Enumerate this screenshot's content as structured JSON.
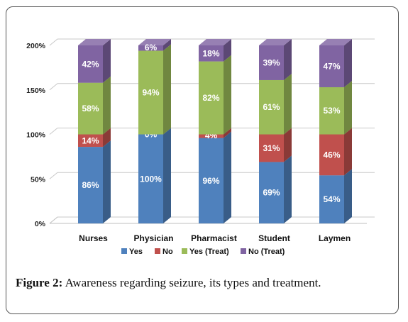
{
  "chart_data": {
    "type": "bar",
    "stacked": true,
    "style": "3d",
    "categories": [
      "Nurses",
      "Physician",
      "Pharmacist",
      "Student",
      "Laymen"
    ],
    "series": [
      {
        "name": "Yes",
        "color": "#4F81BD",
        "values": [
          86,
          100,
          96,
          69,
          54
        ]
      },
      {
        "name": "No",
        "color": "#C0504D",
        "values": [
          14,
          0,
          4,
          31,
          46
        ]
      },
      {
        "name": "Yes (Treat)",
        "color": "#9BBB59",
        "values": [
          58,
          94,
          82,
          61,
          53
        ]
      },
      {
        "name": "No (Treat)",
        "color": "#8064A2",
        "values": [
          42,
          6,
          18,
          39,
          47
        ]
      }
    ],
    "data_labels": [
      [
        "86%",
        "100%",
        "96%",
        "69%",
        "54%"
      ],
      [
        "14%",
        "0%",
        "4%",
        "31%",
        "46%"
      ],
      [
        "58%",
        "94%",
        "82%",
        "61%",
        "53%"
      ],
      [
        "42%",
        "6%",
        "18%",
        "39%",
        "47%"
      ]
    ],
    "ylim": [
      0,
      200
    ],
    "yticks": [
      0,
      50,
      100,
      150,
      200
    ],
    "ytick_labels": [
      "0%",
      "50%",
      "100%",
      "150%",
      "200%"
    ],
    "grid": true,
    "legend_position": "bottom"
  },
  "caption": {
    "label": "Figure 2:",
    "text": " Awareness regarding seizure, its types and treatment."
  }
}
